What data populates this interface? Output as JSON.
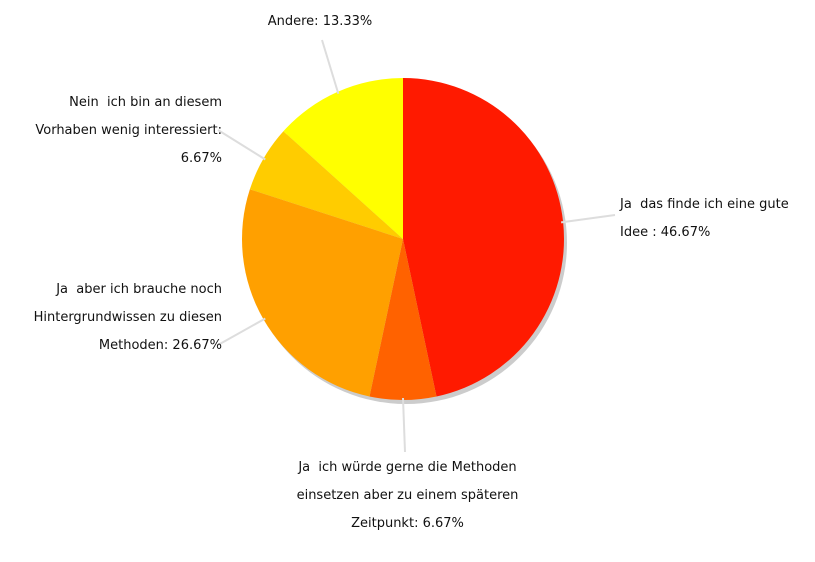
{
  "chart_data": {
    "type": "pie",
    "categories": [
      "Ja  das finde ich eine gute Idee :",
      "Ja  ich würde gerne die Methoden einsetzen aber zu einem späteren Zeitpunkt:",
      "Ja  aber ich brauche noch Hintergrundwissen zu diesen Methoden:",
      "Nein  ich bin an diesem Vorhaben wenig interessiert:",
      "Andere:"
    ],
    "values": [
      46.67,
      6.67,
      26.67,
      6.67,
      13.33
    ],
    "value_labels": [
      "46.67%",
      "6.67%",
      "26.67%",
      "6.67%",
      "13.33%"
    ],
    "colors": [
      "#ff1a00",
      "#ff6200",
      "#ffa000",
      "#ffcc00",
      "#ffff00"
    ]
  }
}
